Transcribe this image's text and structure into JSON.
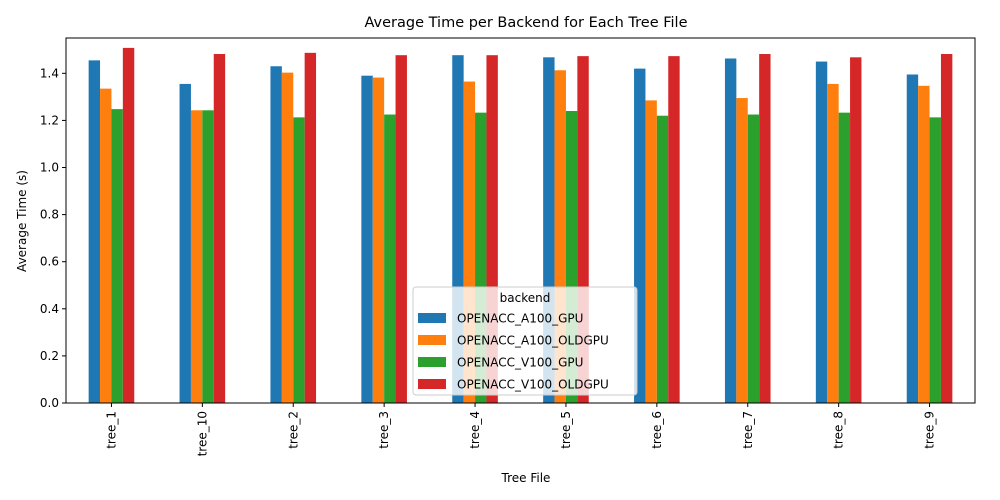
{
  "chart_data": {
    "type": "bar",
    "title": "Average Time per Backend for Each Tree File",
    "xlabel": "Tree File",
    "ylabel": "Average Time (s)",
    "ylim": [
      0,
      1.55
    ],
    "yticks": [
      0.0,
      0.2,
      0.4,
      0.6,
      0.8,
      1.0,
      1.2,
      1.4
    ],
    "grid": false,
    "legend": {
      "title": "backend",
      "placement": "lower-center"
    },
    "categories": [
      "tree_1",
      "tree_10",
      "tree_2",
      "tree_3",
      "tree_4",
      "tree_5",
      "tree_6",
      "tree_7",
      "tree_8",
      "tree_9"
    ],
    "series": [
      {
        "name": "OPENACC_A100_GPU",
        "color": "#1f77b4",
        "values": [
          1.455,
          1.355,
          1.43,
          1.39,
          1.477,
          1.468,
          1.42,
          1.463,
          1.45,
          1.395
        ]
      },
      {
        "name": "OPENACC_A100_OLDGPU",
        "color": "#ff7f0e",
        "values": [
          1.335,
          1.243,
          1.403,
          1.382,
          1.365,
          1.413,
          1.285,
          1.295,
          1.355,
          1.347
        ]
      },
      {
        "name": "OPENACC_V100_GPU",
        "color": "#2ca02c",
        "values": [
          1.248,
          1.243,
          1.213,
          1.225,
          1.233,
          1.24,
          1.22,
          1.225,
          1.233,
          1.213
        ]
      },
      {
        "name": "OPENACC_V100_OLDGPU",
        "color": "#d62728",
        "values": [
          1.508,
          1.482,
          1.487,
          1.477,
          1.477,
          1.473,
          1.473,
          1.482,
          1.468,
          1.482
        ]
      }
    ]
  }
}
